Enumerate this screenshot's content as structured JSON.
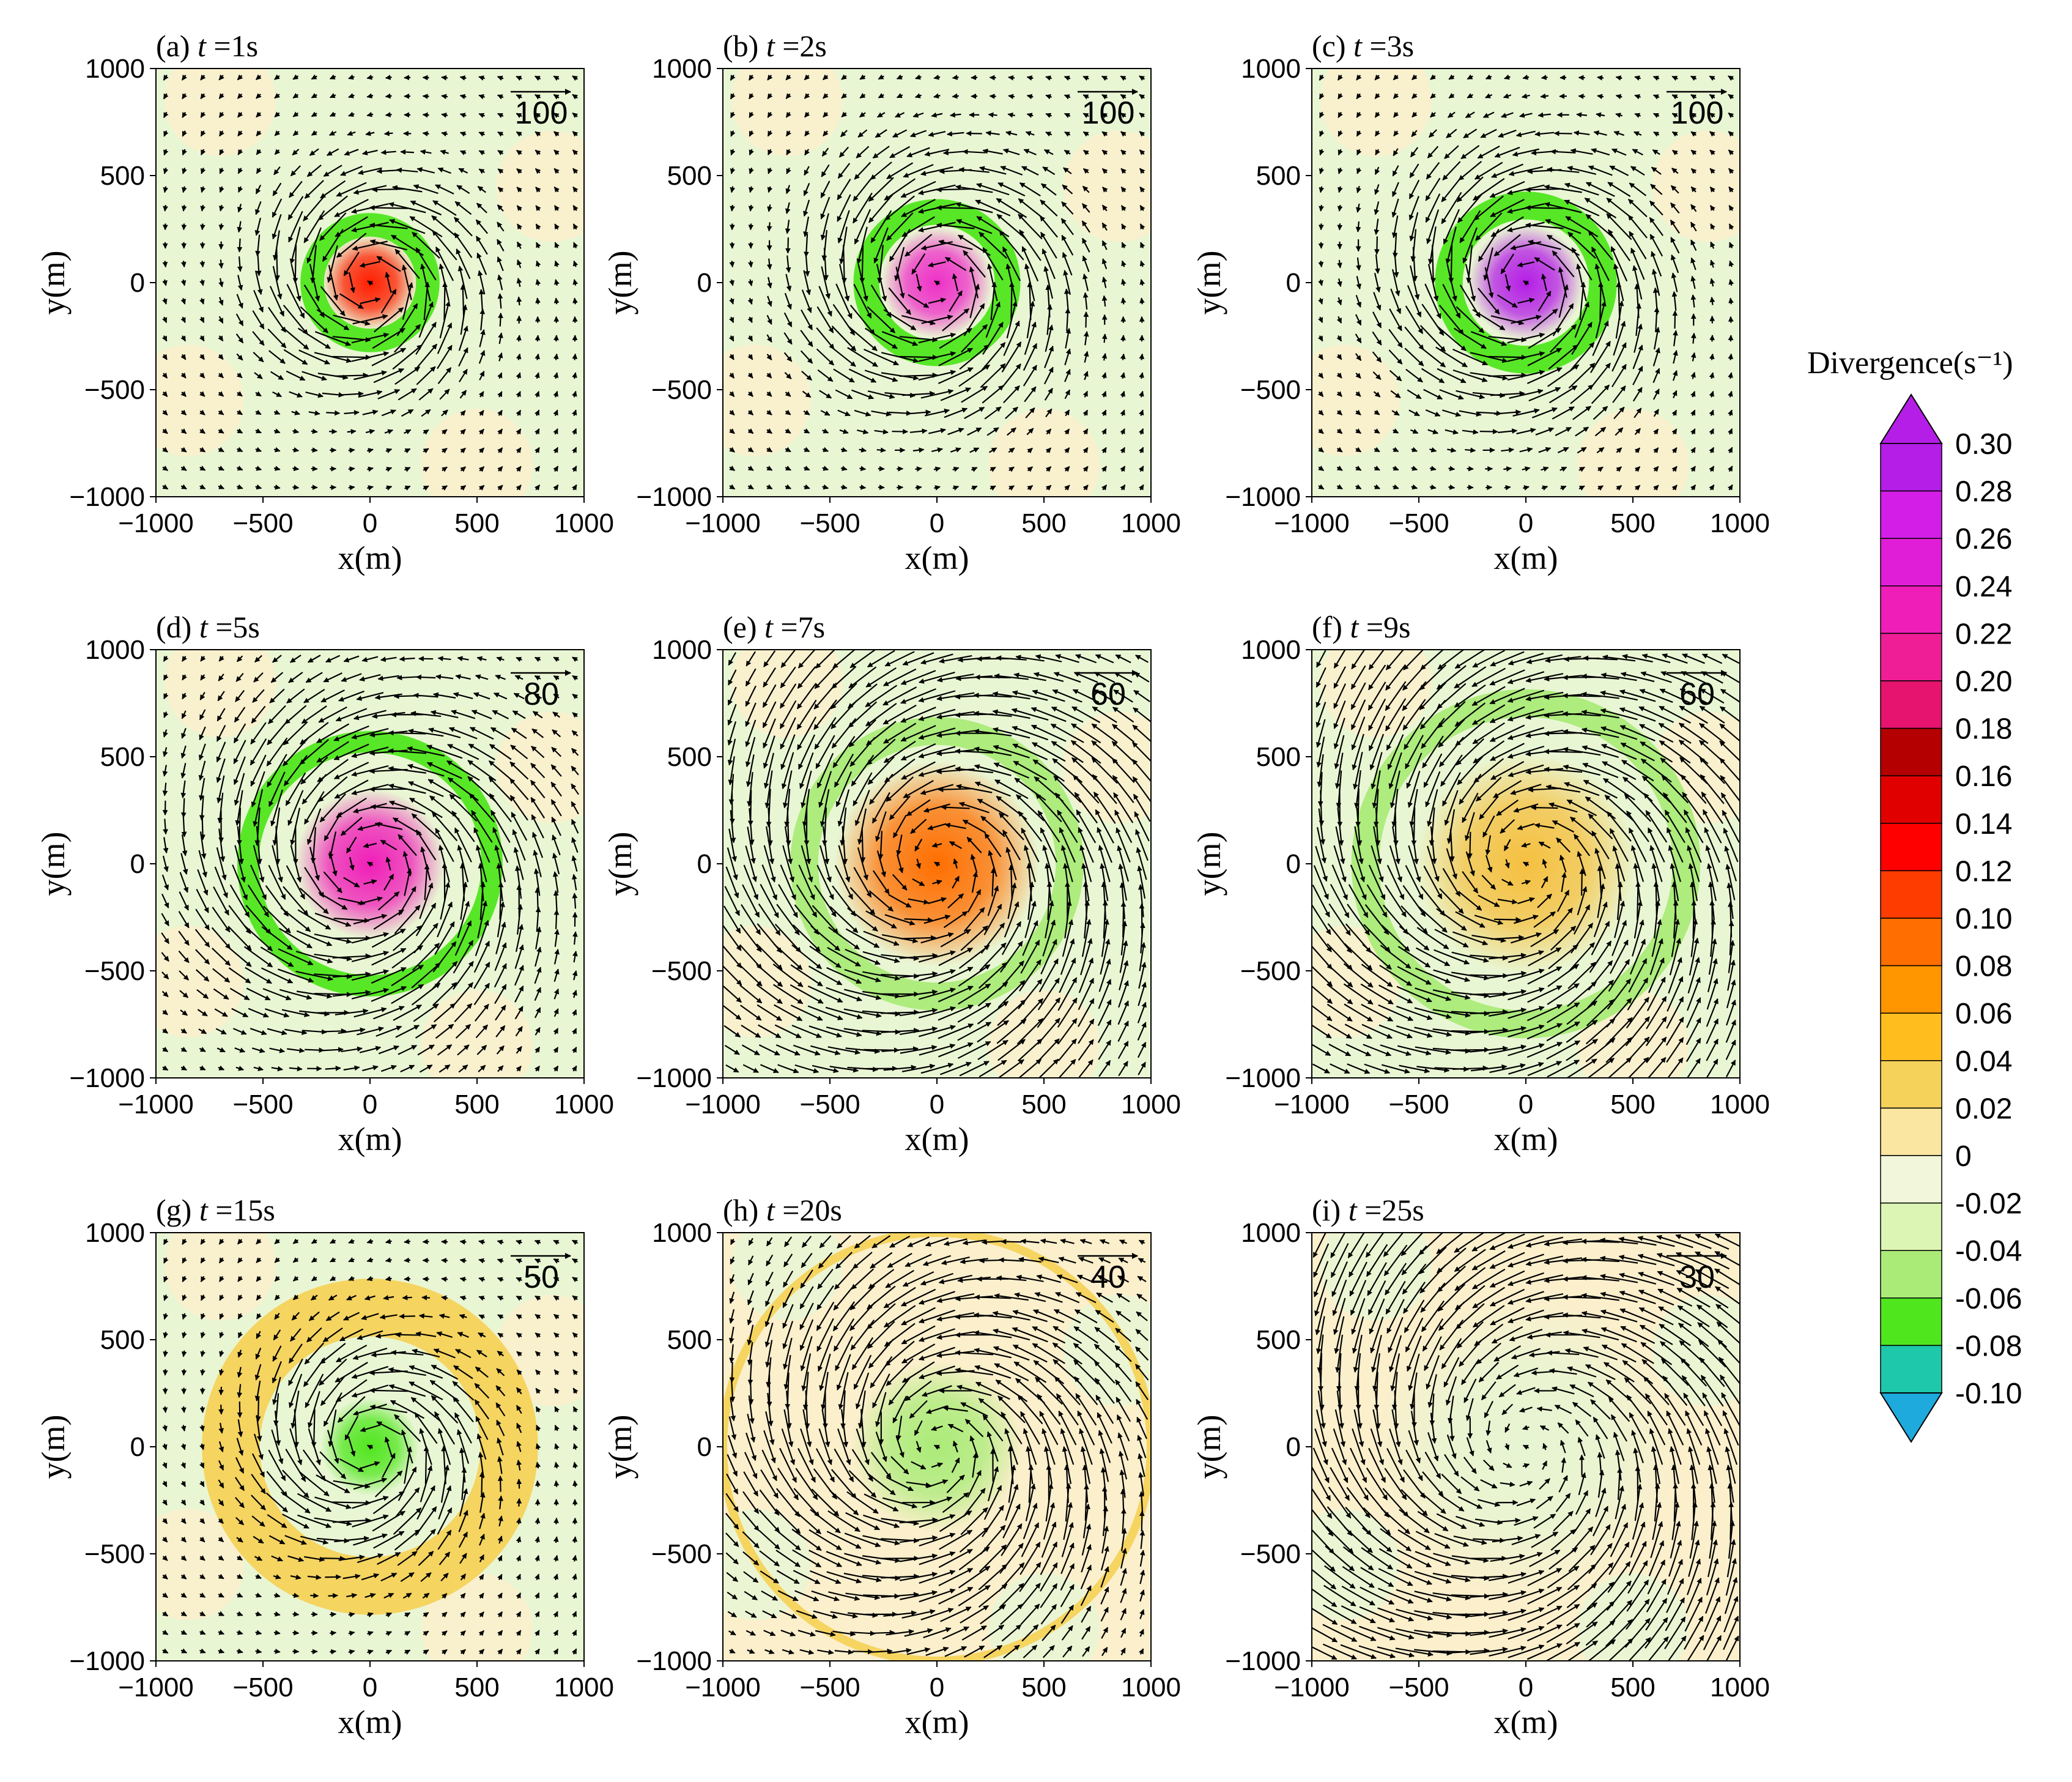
{
  "figure": {
    "colorbar": {
      "title": "Divergence(s⁻¹)",
      "levels": [
        "0.30",
        "0.28",
        "0.26",
        "0.24",
        "0.22",
        "0.20",
        "0.18",
        "0.16",
        "0.14",
        "0.12",
        "0.10",
        "0.08",
        "0.06",
        "0.04",
        "0.02",
        "0",
        "-0.02",
        "-0.04",
        "-0.06",
        "-0.08",
        "-0.10"
      ],
      "colors": [
        "#b41ee6",
        "#d21ee6",
        "#e11ed7",
        "#f01eb9",
        "#f01e96",
        "#e6146e",
        "#b40000",
        "#e10000",
        "#ff0000",
        "#ff3c00",
        "#ff6e00",
        "#ff9600",
        "#ffbe1e",
        "#f5d25a",
        "#fae6a0",
        "#f2f7dc",
        "#dcf5b4",
        "#aaeb78",
        "#50e61e",
        "#1ec8aa"
      ],
      "extend_top": "#b41ee6",
      "extend_bottom": "#1eaadc"
    },
    "ticks": [
      "−1000",
      "−500",
      "0",
      "500",
      "1000"
    ],
    "xlabel": "x(m)",
    "ylabel": "y(m)"
  },
  "chart_data": [
    {
      "type": "heatmap",
      "label": "(a)",
      "t": "1s",
      "ref_vector": "100",
      "core": 0.15,
      "peak_color": "#ff1e00",
      "ring_radius": 270,
      "ring_width": 110,
      "ring_value": -0.06,
      "ring_color": "#50e61e",
      "core_radius": 220,
      "spiral": 0.9,
      "bg": "#e9f6d4"
    },
    {
      "type": "heatmap",
      "label": "(b)",
      "t": "2s",
      "ref_vector": "100",
      "core": 0.24,
      "peak_color": "#ee30c8",
      "ring_radius": 330,
      "ring_width": 120,
      "ring_value": -0.06,
      "ring_color": "#50e61e",
      "core_radius": 260,
      "spiral": 0.9,
      "bg": "#e9f6d4"
    },
    {
      "type": "heatmap",
      "label": "(c)",
      "t": "3s",
      "ref_vector": "100",
      "core": 0.28,
      "peak_color": "#b41ee6",
      "ring_radius": 360,
      "ring_width": 130,
      "ring_value": -0.06,
      "ring_color": "#50e61e",
      "core_radius": 270,
      "spiral": 0.9,
      "bg": "#e9f6d4"
    },
    {
      "type": "heatmap",
      "label": "(d)",
      "t": "5s",
      "ref_vector": "80",
      "core": 0.22,
      "peak_color": "#f01eb9",
      "ring_radius": 570,
      "ring_width": 100,
      "ring_value": -0.06,
      "ring_color": "#50e61e",
      "core_radius": 350,
      "spiral": 1.0,
      "bg": "#e9f6d4"
    },
    {
      "type": "heatmap",
      "label": "(e)",
      "t": "7s",
      "ref_vector": "60",
      "core": 0.1,
      "peak_color": "#ff6e00",
      "ring_radius": 620,
      "ring_width": 130,
      "ring_value": -0.04,
      "ring_color": "#aaeb78",
      "core_radius": 480,
      "spiral": 1.1,
      "bg": "#e9f6d4"
    },
    {
      "type": "heatmap",
      "label": "(f)",
      "t": "9s",
      "ref_vector": "60",
      "core": 0.04,
      "peak_color": "#f5c040",
      "ring_radius": 750,
      "ring_width": 130,
      "ring_value": -0.04,
      "ring_color": "#aaeb78",
      "core_radius": 520,
      "spiral": 1.2,
      "bg": "#e9f6d4"
    },
    {
      "type": "heatmap",
      "label": "(g)",
      "t": "15s",
      "ref_vector": "50",
      "core": -0.06,
      "peak_color": "#50e61e",
      "ring_radius": 650,
      "ring_width": 270,
      "ring_value": 0.04,
      "ring_color": "#f5d25a",
      "core_radius": 230,
      "spiral": 1.2,
      "bg": "#e9f6d4"
    },
    {
      "type": "heatmap",
      "label": "(h)",
      "t": "20s",
      "ref_vector": "40",
      "core": -0.04,
      "peak_color": "#aaeb78",
      "ring_radius": 1000,
      "ring_width": 40,
      "ring_value": 0.04,
      "ring_color": "#f5d25a",
      "core_radius": 400,
      "spiral": 1.3,
      "bg": "#fbefcc"
    },
    {
      "type": "heatmap",
      "label": "(i)",
      "t": "25s",
      "ref_vector": "30",
      "core": -0.02,
      "peak_color": "#e6f5d2",
      "ring_radius": 700,
      "ring_width": 0,
      "ring_value": 0,
      "ring_color": "#fbefcc",
      "core_radius": 700,
      "spiral": 1.3,
      "bg": "#fbefcc"
    }
  ]
}
